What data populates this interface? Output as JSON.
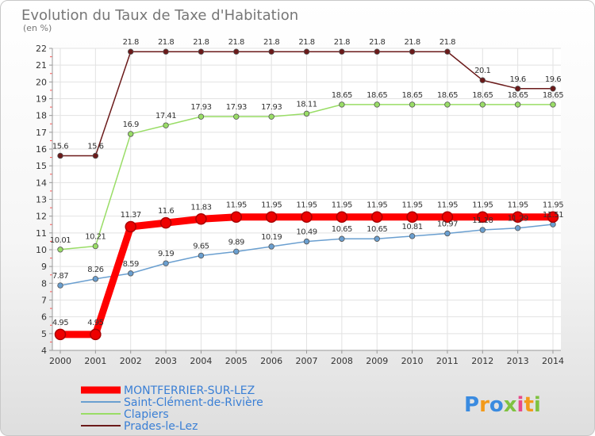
{
  "chart_data": {
    "type": "line",
    "title": "Evolution du Taux de Taxe d'Habitation",
    "subtitle": "(en %)",
    "xlabel": "",
    "ylabel": "",
    "categories": [
      "2000",
      "2001",
      "2002",
      "2003",
      "2004",
      "2005",
      "2006",
      "2007",
      "2008",
      "2009",
      "2010",
      "2011",
      "2012",
      "2013",
      "2014"
    ],
    "ylim": [
      4,
      22
    ],
    "yticks": [
      4,
      5,
      6,
      7,
      8,
      9,
      10,
      11,
      12,
      13,
      14,
      15,
      16,
      17,
      18,
      19,
      20,
      21,
      22
    ],
    "grid": true,
    "legend_position": "bottom-left",
    "series": [
      {
        "name": "Prades-le-Lez",
        "color": "#6b1a1a",
        "values": [
          15.6,
          15.6,
          21.8,
          21.8,
          21.8,
          21.8,
          21.8,
          21.8,
          21.8,
          21.8,
          21.8,
          21.8,
          20.1,
          19.6,
          19.6
        ],
        "labels": [
          "15.6",
          "15.6",
          "21.8",
          "21.8",
          "21.8",
          "21.8",
          "21.8",
          "21.8",
          "21.8",
          "21.8",
          "21.8",
          "21.8",
          "20.1",
          "19.6",
          "19.6"
        ]
      },
      {
        "name": "Clapiers",
        "color": "#99dd66",
        "values": [
          10.01,
          10.21,
          16.9,
          17.41,
          17.93,
          17.93,
          17.93,
          18.11,
          18.65,
          18.65,
          18.65,
          18.65,
          18.65,
          18.65,
          18.65
        ],
        "labels": [
          "10.01",
          "10.21",
          "16.9",
          "17.41",
          "17.93",
          "17.93",
          "17.93",
          "18.11",
          "18.65",
          "18.65",
          "18.65",
          "18.65",
          "18.65",
          "18.65",
          "18.65"
        ]
      },
      {
        "name": "Saint-Clément-de-Rivière",
        "color": "#6a9fd0",
        "values": [
          7.87,
          8.26,
          8.59,
          9.19,
          9.65,
          9.89,
          10.19,
          10.49,
          10.65,
          10.65,
          10.81,
          10.97,
          11.18,
          11.29,
          11.51
        ],
        "labels": [
          "7.87",
          "8.26",
          "8.59",
          "9.19",
          "9.65",
          "9.89",
          "10.19",
          "10.49",
          "10.65",
          "10.65",
          "10.81",
          "10.97",
          "11.18",
          "11.29",
          "11.51"
        ]
      },
      {
        "name": "MONTFERRIER-SUR-LEZ",
        "color": "#ff0000",
        "values": [
          4.95,
          4.95,
          11.37,
          11.6,
          11.83,
          11.95,
          11.95,
          11.95,
          11.95,
          11.95,
          11.95,
          11.95,
          11.95,
          11.95,
          11.95
        ],
        "labels": [
          "4.95",
          "4.95",
          "11.37",
          "11.6",
          "11.83",
          "11.95",
          "11.95",
          "11.95",
          "11.95",
          "11.95",
          "11.95",
          "11.95",
          "11.95",
          "11.95",
          "11.95"
        ]
      }
    ]
  },
  "legend": {
    "items": [
      {
        "name": "MONTFERRIER-SUR-LEZ",
        "color": "#ff0000"
      },
      {
        "name": "Saint-Clément-de-Rivière",
        "color": "#6a9fd0"
      },
      {
        "name": "Clapiers",
        "color": "#99dd66"
      },
      {
        "name": "Prades-le-Lez",
        "color": "#6b1a1a"
      }
    ]
  },
  "brand": {
    "logo_text": "Proxiti",
    "letters": [
      "P",
      "r",
      "o",
      "x",
      "i",
      "t",
      "i"
    ],
    "letter_colors": [
      "#3a8be0",
      "#f39a1a",
      "#3a8be0",
      "#7fc241",
      "#e84a8a",
      "#f39a1a",
      "#7fc241"
    ]
  }
}
